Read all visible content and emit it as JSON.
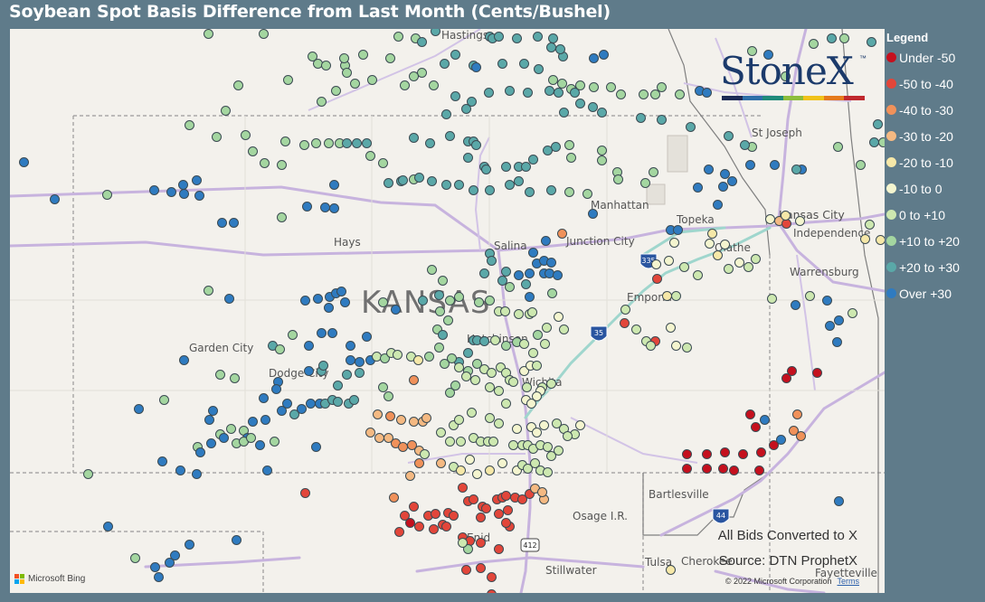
{
  "title": "Soybean Spot Basis Difference from Last Month (Cents/Bushel)",
  "brand": {
    "name": "StoneX",
    "tm": "™",
    "bar_colors": [
      "#1d2a55",
      "#2e6ea8",
      "#1f8a7a",
      "#8cbd3c",
      "#f0c21a",
      "#e57a1c",
      "#c0282d"
    ]
  },
  "legend": {
    "title": "Legend",
    "items": [
      {
        "label": "Under -50",
        "color": "#c5101e"
      },
      {
        "label": "-50 to -40",
        "color": "#e2463a"
      },
      {
        "label": "-40 to -30",
        "color": "#f0915a"
      },
      {
        "label": "-30 to -20",
        "color": "#f4b982"
      },
      {
        "label": "-20 to -10",
        "color": "#f6e8a8"
      },
      {
        "label": "-10 to 0",
        "color": "#f4f5cf"
      },
      {
        "label": "0 to +10",
        "color": "#cde8b0"
      },
      {
        "label": "+10 to +20",
        "color": "#a4d6a0"
      },
      {
        "label": "+20 to +30",
        "color": "#5aa8a8"
      },
      {
        "label": "Over +30",
        "color": "#2f7bc0"
      }
    ]
  },
  "map": {
    "places": {
      "kansas": "KANSAS",
      "hastings": "Hastings",
      "st_joseph": "St Joseph",
      "manhattan": "Manhattan",
      "topeka": "Topeka",
      "kansas_city": "Kansas City",
      "independence": "Independence",
      "hays": "Hays",
      "salina": "Salina",
      "junction_city": "Junction City",
      "olathe": "Olathe",
      "warrensburg": "Warrensburg",
      "emporia": "Emporia",
      "garden_city": "Garden City",
      "dodge_city": "Dodge City",
      "hutchinson": "Hutchinson",
      "wichita": "Wichita",
      "bartlesville": "Bartlesville",
      "osage": "Osage I.R.",
      "enid": "Enid",
      "stillwater": "Stillwater",
      "tulsa": "Tulsa",
      "cherokee": "Cherokee",
      "fayetteville": "Fayetteville"
    },
    "shields": {
      "i335": "335",
      "i35": "35",
      "i44": "44",
      "us412": "412"
    },
    "notes": {
      "converted": "All Bids Converted to X",
      "source": "Source: DTN ProphetX"
    },
    "attribution": {
      "bing": "Microsoft Bing",
      "copyright": "© 2022 Microsoft Corporation",
      "terms": "Terms"
    },
    "bing_logo_colors": [
      "#f25022",
      "#7fba00",
      "#00a4ef",
      "#ffb900"
    ]
  }
}
